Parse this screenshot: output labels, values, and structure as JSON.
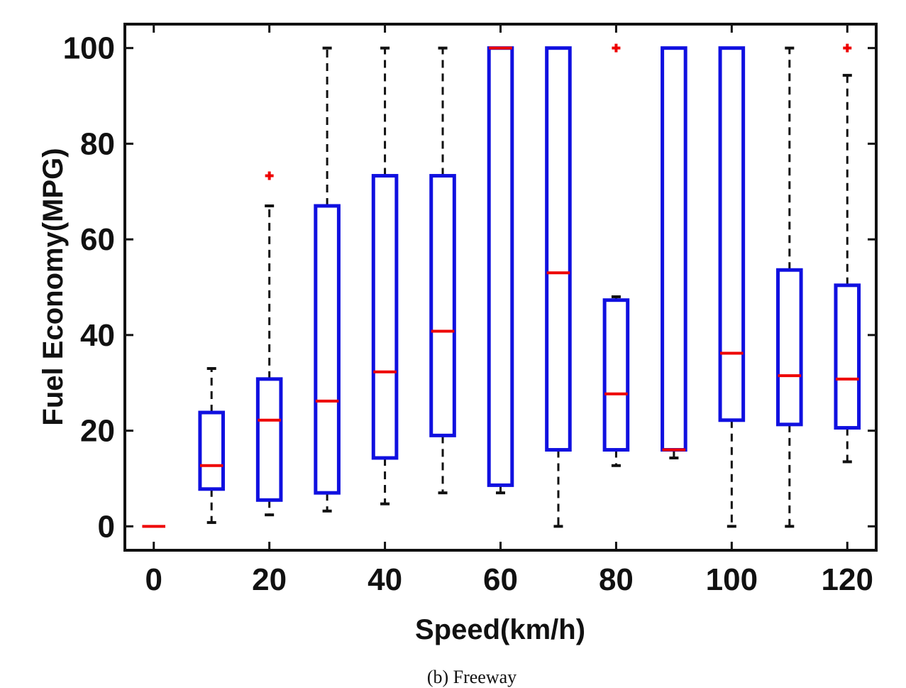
{
  "chart_data": {
    "type": "box",
    "xlabel": "Speed(km/h)",
    "ylabel": "Fuel Economy(MPG)",
    "caption": "(b) Freeway",
    "xlim": [
      -5,
      125
    ],
    "ylim": [
      -5,
      105
    ],
    "xticks": [
      0,
      20,
      40,
      60,
      80,
      100,
      120
    ],
    "yticks": [
      0,
      20,
      40,
      60,
      80,
      100
    ],
    "grid": false,
    "colors": {
      "box": "#1010e0",
      "median": "#ee0000",
      "whisker": "#111111",
      "outlier": "#ee0000",
      "axis": "#111111"
    },
    "boxes": [
      {
        "x": 0,
        "whisker_low": 0,
        "q1": 0,
        "median": 0,
        "q3": 0,
        "whisker_high": 0,
        "outliers": []
      },
      {
        "x": 10,
        "whisker_low": 0.8,
        "q1": 7.8,
        "median": 12.7,
        "q3": 23.8,
        "whisker_high": 33,
        "outliers": []
      },
      {
        "x": 20,
        "whisker_low": 2.4,
        "q1": 5.5,
        "median": 22.2,
        "q3": 30.8,
        "whisker_high": 67,
        "outliers": [
          73.3
        ]
      },
      {
        "x": 30,
        "whisker_low": 3.2,
        "q1": 7.0,
        "median": 26.2,
        "q3": 67,
        "whisker_high": 100,
        "outliers": []
      },
      {
        "x": 40,
        "whisker_low": 4.7,
        "q1": 14.3,
        "median": 32.3,
        "q3": 73.3,
        "whisker_high": 100,
        "outliers": []
      },
      {
        "x": 50,
        "whisker_low": 7.0,
        "q1": 19.0,
        "median": 40.8,
        "q3": 73.3,
        "whisker_high": 100,
        "outliers": []
      },
      {
        "x": 60,
        "whisker_low": 7.0,
        "q1": 8.6,
        "median": 100,
        "q3": 100,
        "whisker_high": 100,
        "outliers": []
      },
      {
        "x": 70,
        "whisker_low": 0,
        "q1": 16.0,
        "median": 53.0,
        "q3": 100,
        "whisker_high": 100,
        "outliers": []
      },
      {
        "x": 80,
        "whisker_low": 12.7,
        "q1": 16.0,
        "median": 27.7,
        "q3": 47.3,
        "whisker_high": 48,
        "outliers": [
          100
        ]
      },
      {
        "x": 90,
        "whisker_low": 14.3,
        "q1": 16.0,
        "median": 16.0,
        "q3": 100,
        "whisker_high": 100,
        "outliers": []
      },
      {
        "x": 100,
        "whisker_low": 0,
        "q1": 22.2,
        "median": 36.2,
        "q3": 100,
        "whisker_high": 100,
        "outliers": []
      },
      {
        "x": 110,
        "whisker_low": 0,
        "q1": 21.3,
        "median": 31.5,
        "q3": 53.6,
        "whisker_high": 100,
        "outliers": []
      },
      {
        "x": 120,
        "whisker_low": 13.5,
        "q1": 20.6,
        "median": 30.8,
        "q3": 50.4,
        "whisker_high": 94.3,
        "outliers": [
          100
        ]
      }
    ]
  }
}
